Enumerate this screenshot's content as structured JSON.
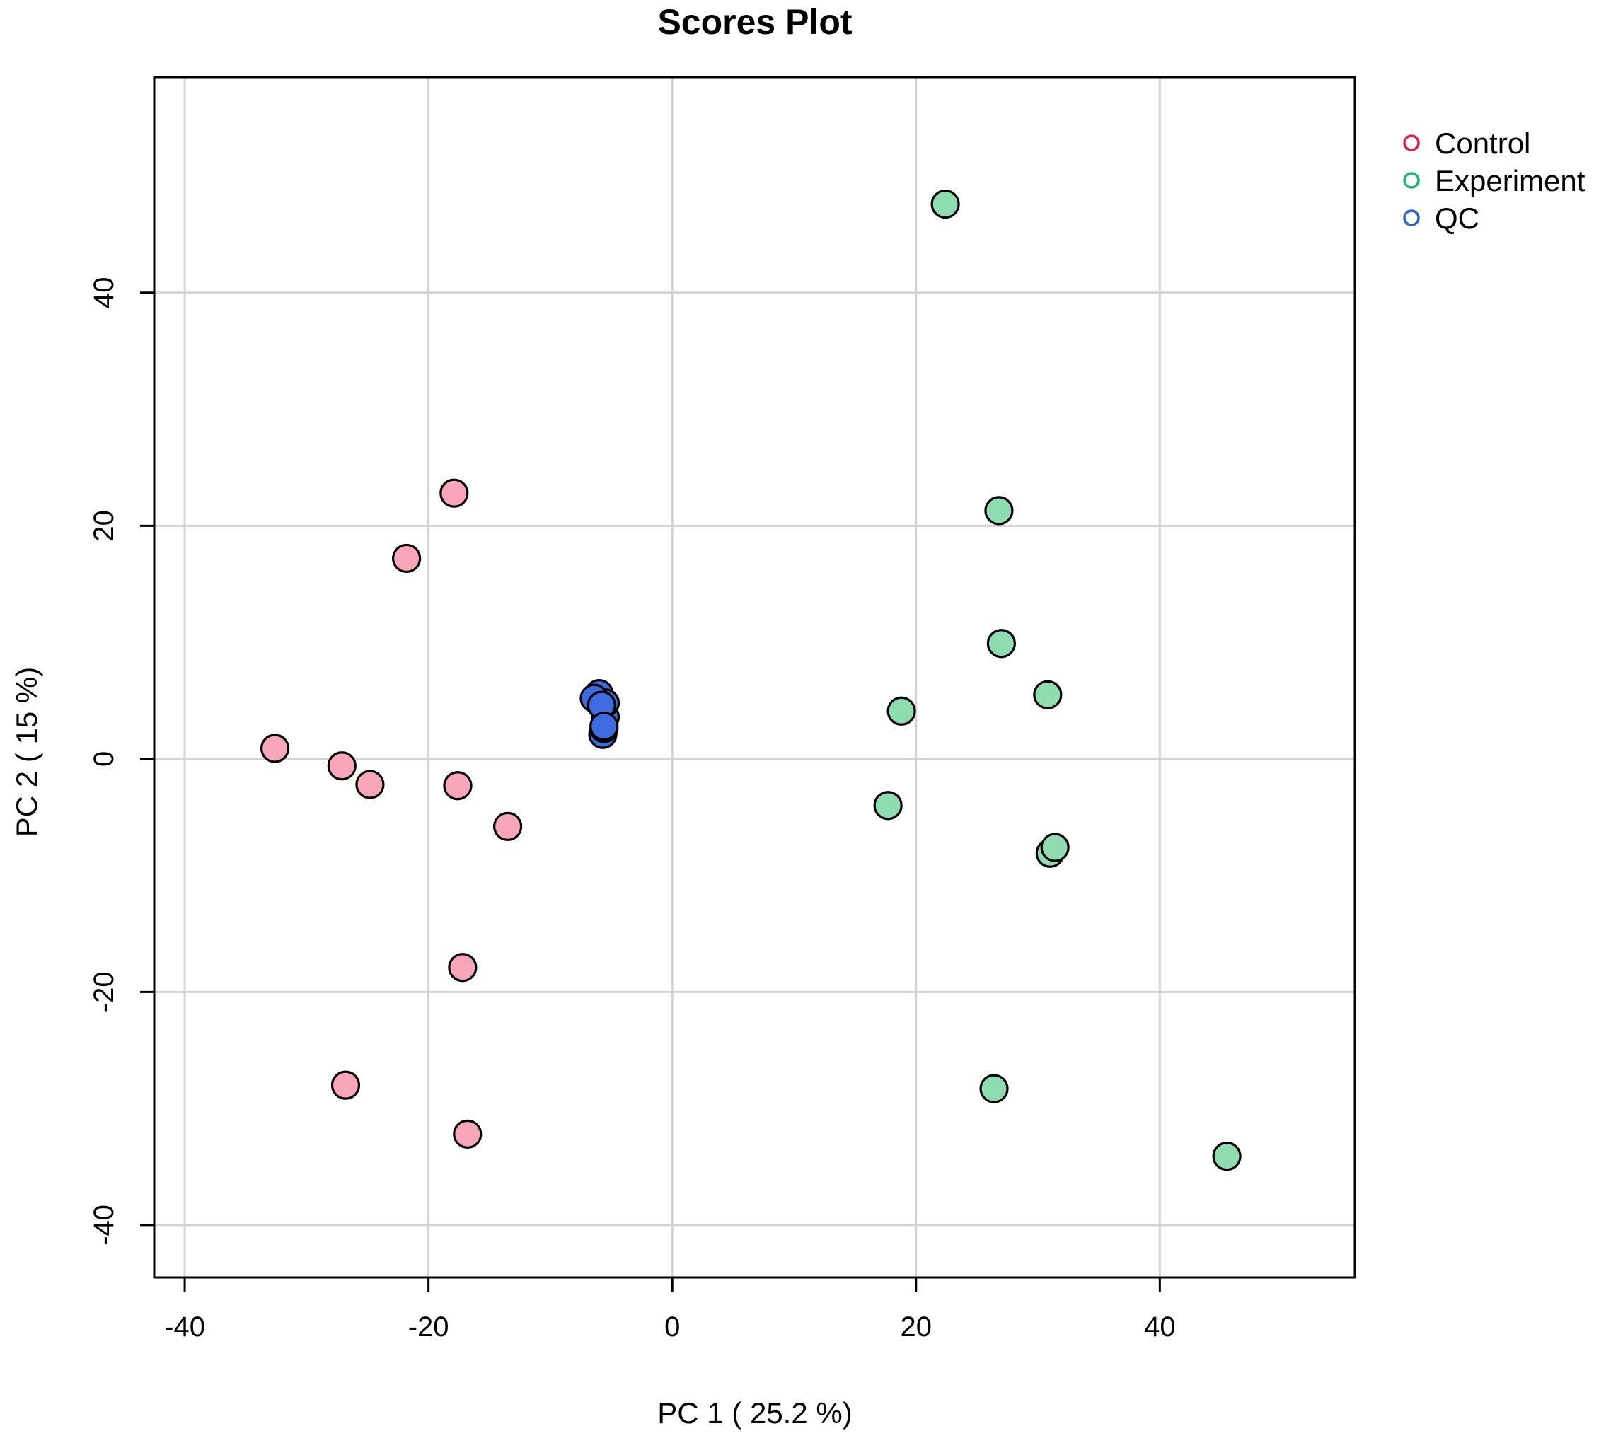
{
  "chart_data": {
    "type": "scatter",
    "title": "Scores Plot",
    "xlabel": "PC 1 ( 25.2 %)",
    "ylabel": "PC 2 ( 15 %)",
    "xlim": [
      -42.5,
      56.0
    ],
    "ylim": [
      -44.5,
      58.5
    ],
    "xticks": [
      -40,
      -20,
      0,
      20,
      40
    ],
    "yticks": [
      -40,
      -20,
      0,
      20,
      40
    ],
    "xtick_labels": [
      "-40",
      "-20",
      "0",
      "20",
      "40"
    ],
    "ytick_labels": [
      "-40",
      "-20",
      "0",
      "20",
      "40"
    ],
    "grid": true,
    "legend_position": "top-right, outside plot",
    "legend": [
      {
        "label": "Control",
        "color": "#e8194b"
      },
      {
        "label": "Experiment",
        "color": "#1fb46e"
      },
      {
        "label": "QC",
        "color": "#2b5fd9"
      }
    ],
    "series": [
      {
        "name": "Control",
        "fill": "#f9a6bb",
        "points": [
          {
            "x": -17.9,
            "y": 22.8
          },
          {
            "x": -21.8,
            "y": 17.2
          },
          {
            "x": -32.6,
            "y": 0.9
          },
          {
            "x": -27.1,
            "y": -0.6
          },
          {
            "x": -24.8,
            "y": -2.2
          },
          {
            "x": -17.6,
            "y": -2.3
          },
          {
            "x": -13.5,
            "y": -5.8
          },
          {
            "x": -17.2,
            "y": -17.9
          },
          {
            "x": -26.8,
            "y": -28.0
          },
          {
            "x": -16.8,
            "y": -32.2
          }
        ]
      },
      {
        "name": "Experiment",
        "fill": "#8fdcb1",
        "points": [
          {
            "x": 22.4,
            "y": 47.6
          },
          {
            "x": 26.8,
            "y": 21.3
          },
          {
            "x": 27.0,
            "y": 9.9
          },
          {
            "x": 30.8,
            "y": 5.5
          },
          {
            "x": 18.8,
            "y": 4.1
          },
          {
            "x": 17.7,
            "y": -4.0
          },
          {
            "x": 31.0,
            "y": -8.1
          },
          {
            "x": 31.4,
            "y": -7.6
          },
          {
            "x": 26.4,
            "y": -28.3
          },
          {
            "x": 45.5,
            "y": -34.1
          }
        ]
      },
      {
        "name": "QC",
        "fill": "#3e6be0",
        "points": [
          {
            "x": -5.7,
            "y": 2.1
          },
          {
            "x": -5.5,
            "y": 3.6
          },
          {
            "x": -5.6,
            "y": 2.6
          },
          {
            "x": -6.0,
            "y": 5.6
          },
          {
            "x": -5.5,
            "y": 4.8
          },
          {
            "x": -6.4,
            "y": 5.2
          },
          {
            "x": -5.8,
            "y": 4.6
          },
          {
            "x": -5.6,
            "y": 2.8
          }
        ]
      }
    ]
  }
}
